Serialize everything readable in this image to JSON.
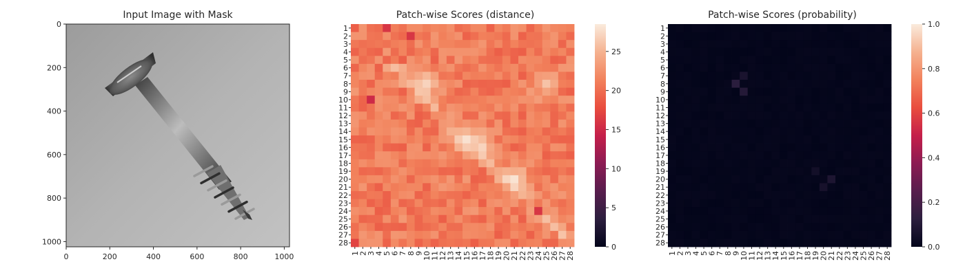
{
  "chart_data": [
    {
      "type": "image",
      "title": "Input Image with Mask",
      "xticks": [
        0,
        200,
        400,
        600,
        800,
        1000
      ],
      "yticks": [
        0,
        200,
        400,
        600,
        800,
        1000
      ],
      "xlim": [
        0,
        1024
      ],
      "ylim": [
        1024,
        0
      ],
      "image_description": "grayscale photo of a metal screw on a light gray background",
      "screw_head_center": [
        230,
        230
      ],
      "screw_tip": [
        850,
        890
      ]
    },
    {
      "type": "heatmap",
      "title": "Patch-wise Scores (distance)",
      "rows": 28,
      "cols": 28,
      "tick_labels": [
        "1",
        "2",
        "3",
        "4",
        "5",
        "6",
        "7",
        "8",
        "9",
        "10",
        "11",
        "12",
        "13",
        "14",
        "15",
        "16",
        "17",
        "18",
        "19",
        "20",
        "21",
        "22",
        "23",
        "24",
        "25",
        "26",
        "27",
        "28"
      ],
      "colorbar_ticks": [
        0,
        5,
        10,
        15,
        20,
        25
      ],
      "vmin": 0,
      "vmax": 28.5,
      "colormap": "rocket",
      "base_value": 21,
      "hot_spots": [
        {
          "row": 8,
          "col": 10,
          "value": 27
        },
        {
          "row": 15,
          "col": 15,
          "value": 28
        },
        {
          "row": 16,
          "col": 17,
          "value": 27
        },
        {
          "row": 20,
          "col": 21,
          "value": 28
        },
        {
          "row": 8,
          "col": 25,
          "value": 26
        }
      ],
      "low_spots": [
        {
          "row": 1,
          "col": 5,
          "value": 16
        },
        {
          "row": 2,
          "col": 8,
          "value": 16
        },
        {
          "row": 10,
          "col": 3,
          "value": 15
        },
        {
          "row": 24,
          "col": 24,
          "value": 16
        },
        {
          "row": 28,
          "col": 1,
          "value": 17
        }
      ]
    },
    {
      "type": "heatmap",
      "title": "Patch-wise Scores (probability)",
      "rows": 28,
      "cols": 28,
      "tick_labels": [
        "1",
        "2",
        "3",
        "4",
        "5",
        "6",
        "7",
        "8",
        "9",
        "10",
        "11",
        "12",
        "13",
        "14",
        "15",
        "16",
        "17",
        "18",
        "19",
        "20",
        "21",
        "22",
        "23",
        "24",
        "25",
        "26",
        "27",
        "28"
      ],
      "colorbar_ticks": [
        "0.0",
        "0.2",
        "0.4",
        "0.6",
        "0.8",
        "1.0"
      ],
      "vmin": 0,
      "vmax": 1,
      "colormap": "rocket",
      "base_value": 0.0,
      "hot_spots": [
        {
          "row": 8,
          "col": 9,
          "value": 0.12
        },
        {
          "row": 9,
          "col": 10,
          "value": 0.1
        },
        {
          "row": 7,
          "col": 10,
          "value": 0.07
        },
        {
          "row": 20,
          "col": 21,
          "value": 0.08
        },
        {
          "row": 21,
          "col": 20,
          "value": 0.06
        },
        {
          "row": 19,
          "col": 19,
          "value": 0.05
        }
      ]
    }
  ]
}
